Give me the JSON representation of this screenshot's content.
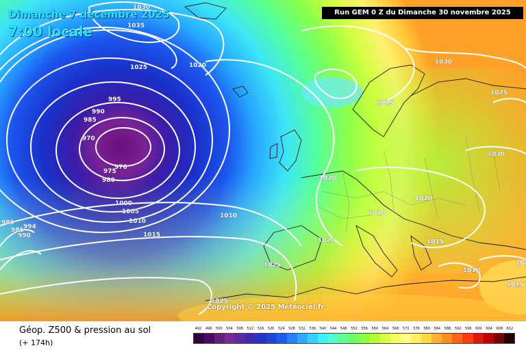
{
  "header": {
    "date_line": "Dimanche 7 décembre 2025",
    "local_time": "7:00 locale",
    "run_banner": "Run GEM 0 Z du Dimanche 30 novembre 2025"
  },
  "copyright": "Copyright © 2025 Météociel.fr",
  "footer": {
    "parameter": "Géop. Z500 & pression au sol",
    "lead_time": "(+ 174h)"
  },
  "scale_labels": [
    "492",
    "496",
    "500",
    "504",
    "508",
    "512",
    "516",
    "520",
    "524",
    "528",
    "532",
    "536",
    "540",
    "544",
    "548",
    "552",
    "556",
    "560",
    "564",
    "568",
    "572",
    "576",
    "580",
    "584",
    "588",
    "592",
    "596",
    "600",
    "604",
    "608",
    "612"
  ],
  "scale_colors": [
    "#300040",
    "#4a0a60",
    "#641e7e",
    "#7a2a92",
    "#5a2ca0",
    "#3c2ab4",
    "#2434c8",
    "#1c46dc",
    "#1c5cf0",
    "#2880ff",
    "#30a8ff",
    "#34d0ff",
    "#40f0f8",
    "#50ffc8",
    "#60ff90",
    "#70ff60",
    "#90ff40",
    "#b4ff30",
    "#d8ff40",
    "#f0ff60",
    "#ffff80",
    "#fff060",
    "#ffd840",
    "#ffb030",
    "#ff8c20",
    "#ff6418",
    "#ff3c10",
    "#e61408",
    "#c00000",
    "#780000",
    "#200000"
  ],
  "isobar_labels": [
    {
      "text": "1030"
    },
    {
      "text": "1035"
    },
    {
      "text": "1025"
    },
    {
      "text": "1020"
    },
    {
      "text": "995"
    },
    {
      "text": "990"
    },
    {
      "text": "985"
    },
    {
      "text": "970"
    },
    {
      "text": "970"
    },
    {
      "text": "975"
    },
    {
      "text": "980"
    },
    {
      "text": "1000"
    },
    {
      "text": "1005"
    },
    {
      "text": "1010"
    },
    {
      "text": "1010"
    },
    {
      "text": "1015"
    },
    {
      "text": "980"
    },
    {
      "text": "985"
    },
    {
      "text": "990"
    },
    {
      "text": "994"
    },
    {
      "text": "1025"
    },
    {
      "text": "1025"
    },
    {
      "text": "1030"
    },
    {
      "text": "1030"
    },
    {
      "text": "1020"
    },
    {
      "text": "1020"
    },
    {
      "text": "1020"
    },
    {
      "text": "1020"
    },
    {
      "text": "1015"
    },
    {
      "text": "1010"
    },
    {
      "text": "1015"
    },
    {
      "text": "1025"
    },
    {
      "text": "1025"
    },
    {
      "text": "102"
    }
  ]
}
